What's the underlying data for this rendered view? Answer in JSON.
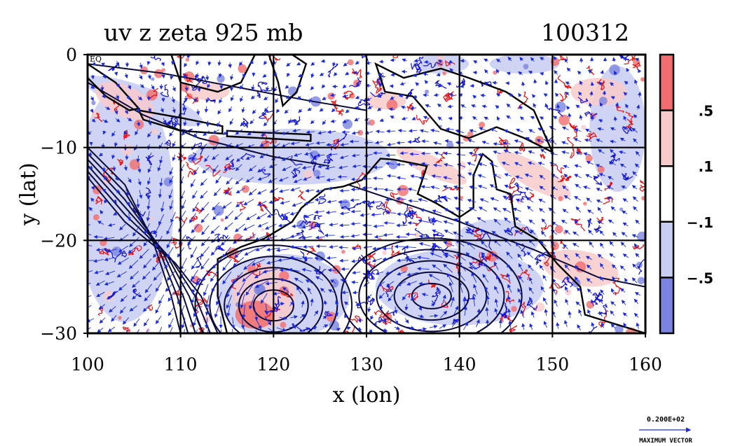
{
  "chart_data": {
    "type": "heatmap",
    "title": "uv z zeta 925 mb",
    "date_label": "100312",
    "xlabel": "x (lon)",
    "ylabel": "y (lat)",
    "xlim": [
      100,
      160
    ],
    "ylim": [
      -30,
      0
    ],
    "x_ticks": [
      100,
      110,
      120,
      130,
      140,
      150,
      160
    ],
    "y_ticks": [
      0,
      -10,
      -20,
      -30
    ],
    "x_tick_labels": [
      "100",
      "110",
      "120",
      "130",
      "140",
      "150",
      "160"
    ],
    "y_tick_labels": [
      "0",
      "−10",
      "−20",
      "−30"
    ],
    "corner_label": "EQ",
    "grid": true,
    "colorbar": {
      "levels": [
        ".5",
        ".1",
        "−.1",
        "−.5"
      ],
      "bands": [
        {
          "name": "strong-positive",
          "color": "#f26d6d"
        },
        {
          "name": "weak-positive",
          "color": "#f8caca"
        },
        {
          "name": "near-zero",
          "color": "#ffffff"
        },
        {
          "name": "weak-negative",
          "color": "#c8cdf2"
        },
        {
          "name": "strong-negative",
          "color": "#7a84e0"
        }
      ]
    },
    "vector_key": {
      "value_label": "0.200E+02",
      "caption": "MAXIMUM VECTOR"
    },
    "colors": {
      "vector": "#1a2bdd",
      "contour_positive": "#e81010",
      "contour_negative": "#1010d0",
      "geopotential_contour": "#0a0a3a",
      "coastline": "#000000"
    }
  }
}
